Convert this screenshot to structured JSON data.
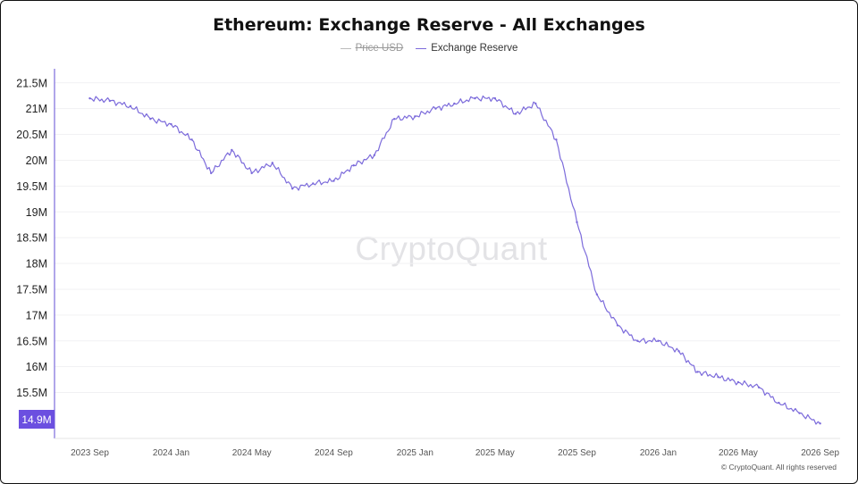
{
  "chart_data": {
    "type": "line",
    "title": "Ethereum: Exchange Reserve - All Exchanges",
    "legend": [
      {
        "name": "Price USD",
        "visible": false
      },
      {
        "name": "Exchange Reserve",
        "visible": true
      }
    ],
    "series": [
      {
        "name": "Exchange Reserve",
        "color": "#7c6bdb",
        "x": [
          "2023-09-01",
          "2023-10-01",
          "2023-11-01",
          "2023-12-01",
          "2024-01-01",
          "2024-02-01",
          "2024-03-01",
          "2024-04-01",
          "2024-05-01",
          "2024-06-01",
          "2024-07-01",
          "2024-08-01",
          "2024-09-01",
          "2024-10-01",
          "2024-11-01",
          "2024-12-01",
          "2025-01-01",
          "2025-02-01",
          "2025-03-01",
          "2025-04-01",
          "2025-05-01",
          "2025-06-01",
          "2025-07-01",
          "2025-08-01",
          "2025-09-01",
          "2025-10-01",
          "2025-11-01",
          "2025-12-01",
          "2026-01-01",
          "2026-02-01",
          "2026-03-01",
          "2026-04-01",
          "2026-05-01",
          "2026-06-01",
          "2026-07-01",
          "2026-08-01",
          "2026-09-01"
        ],
        "values": [
          21.2,
          21.15,
          21.05,
          20.8,
          20.7,
          20.4,
          19.75,
          20.2,
          19.75,
          19.95,
          19.45,
          19.55,
          19.6,
          19.9,
          20.1,
          20.8,
          20.85,
          21.0,
          21.1,
          21.2,
          21.2,
          20.9,
          21.1,
          20.4,
          18.8,
          17.4,
          16.8,
          16.5,
          16.5,
          16.3,
          15.9,
          15.8,
          15.7,
          15.6,
          15.3,
          15.1,
          14.9
        ]
      }
    ],
    "x_ticks": [
      "2023 Sep",
      "2024 Jan",
      "2024 May",
      "2024 Sep",
      "2025 Jan",
      "2025 May",
      "2025 Sep",
      "2026 Jan",
      "2026 May",
      "2026 Sep"
    ],
    "y_ticks": [
      "15.5M",
      "16M",
      "16.5M",
      "17M",
      "17.5M",
      "18M",
      "18.5M",
      "19M",
      "19.5M",
      "20M",
      "20.5M",
      "21M",
      "21.5M"
    ],
    "y_tick_values": [
      15.5,
      16,
      16.5,
      17,
      17.5,
      18,
      18.5,
      19,
      19.5,
      20,
      20.5,
      21,
      21.5
    ],
    "ylim": [
      14.8,
      21.6
    ],
    "xlim": [
      "2023-07-10",
      "2026-10-01"
    ],
    "last_value_label": "14.9M",
    "watermark": "CryptoQuant",
    "credit": "© CryptoQuant. All rights reserved"
  }
}
